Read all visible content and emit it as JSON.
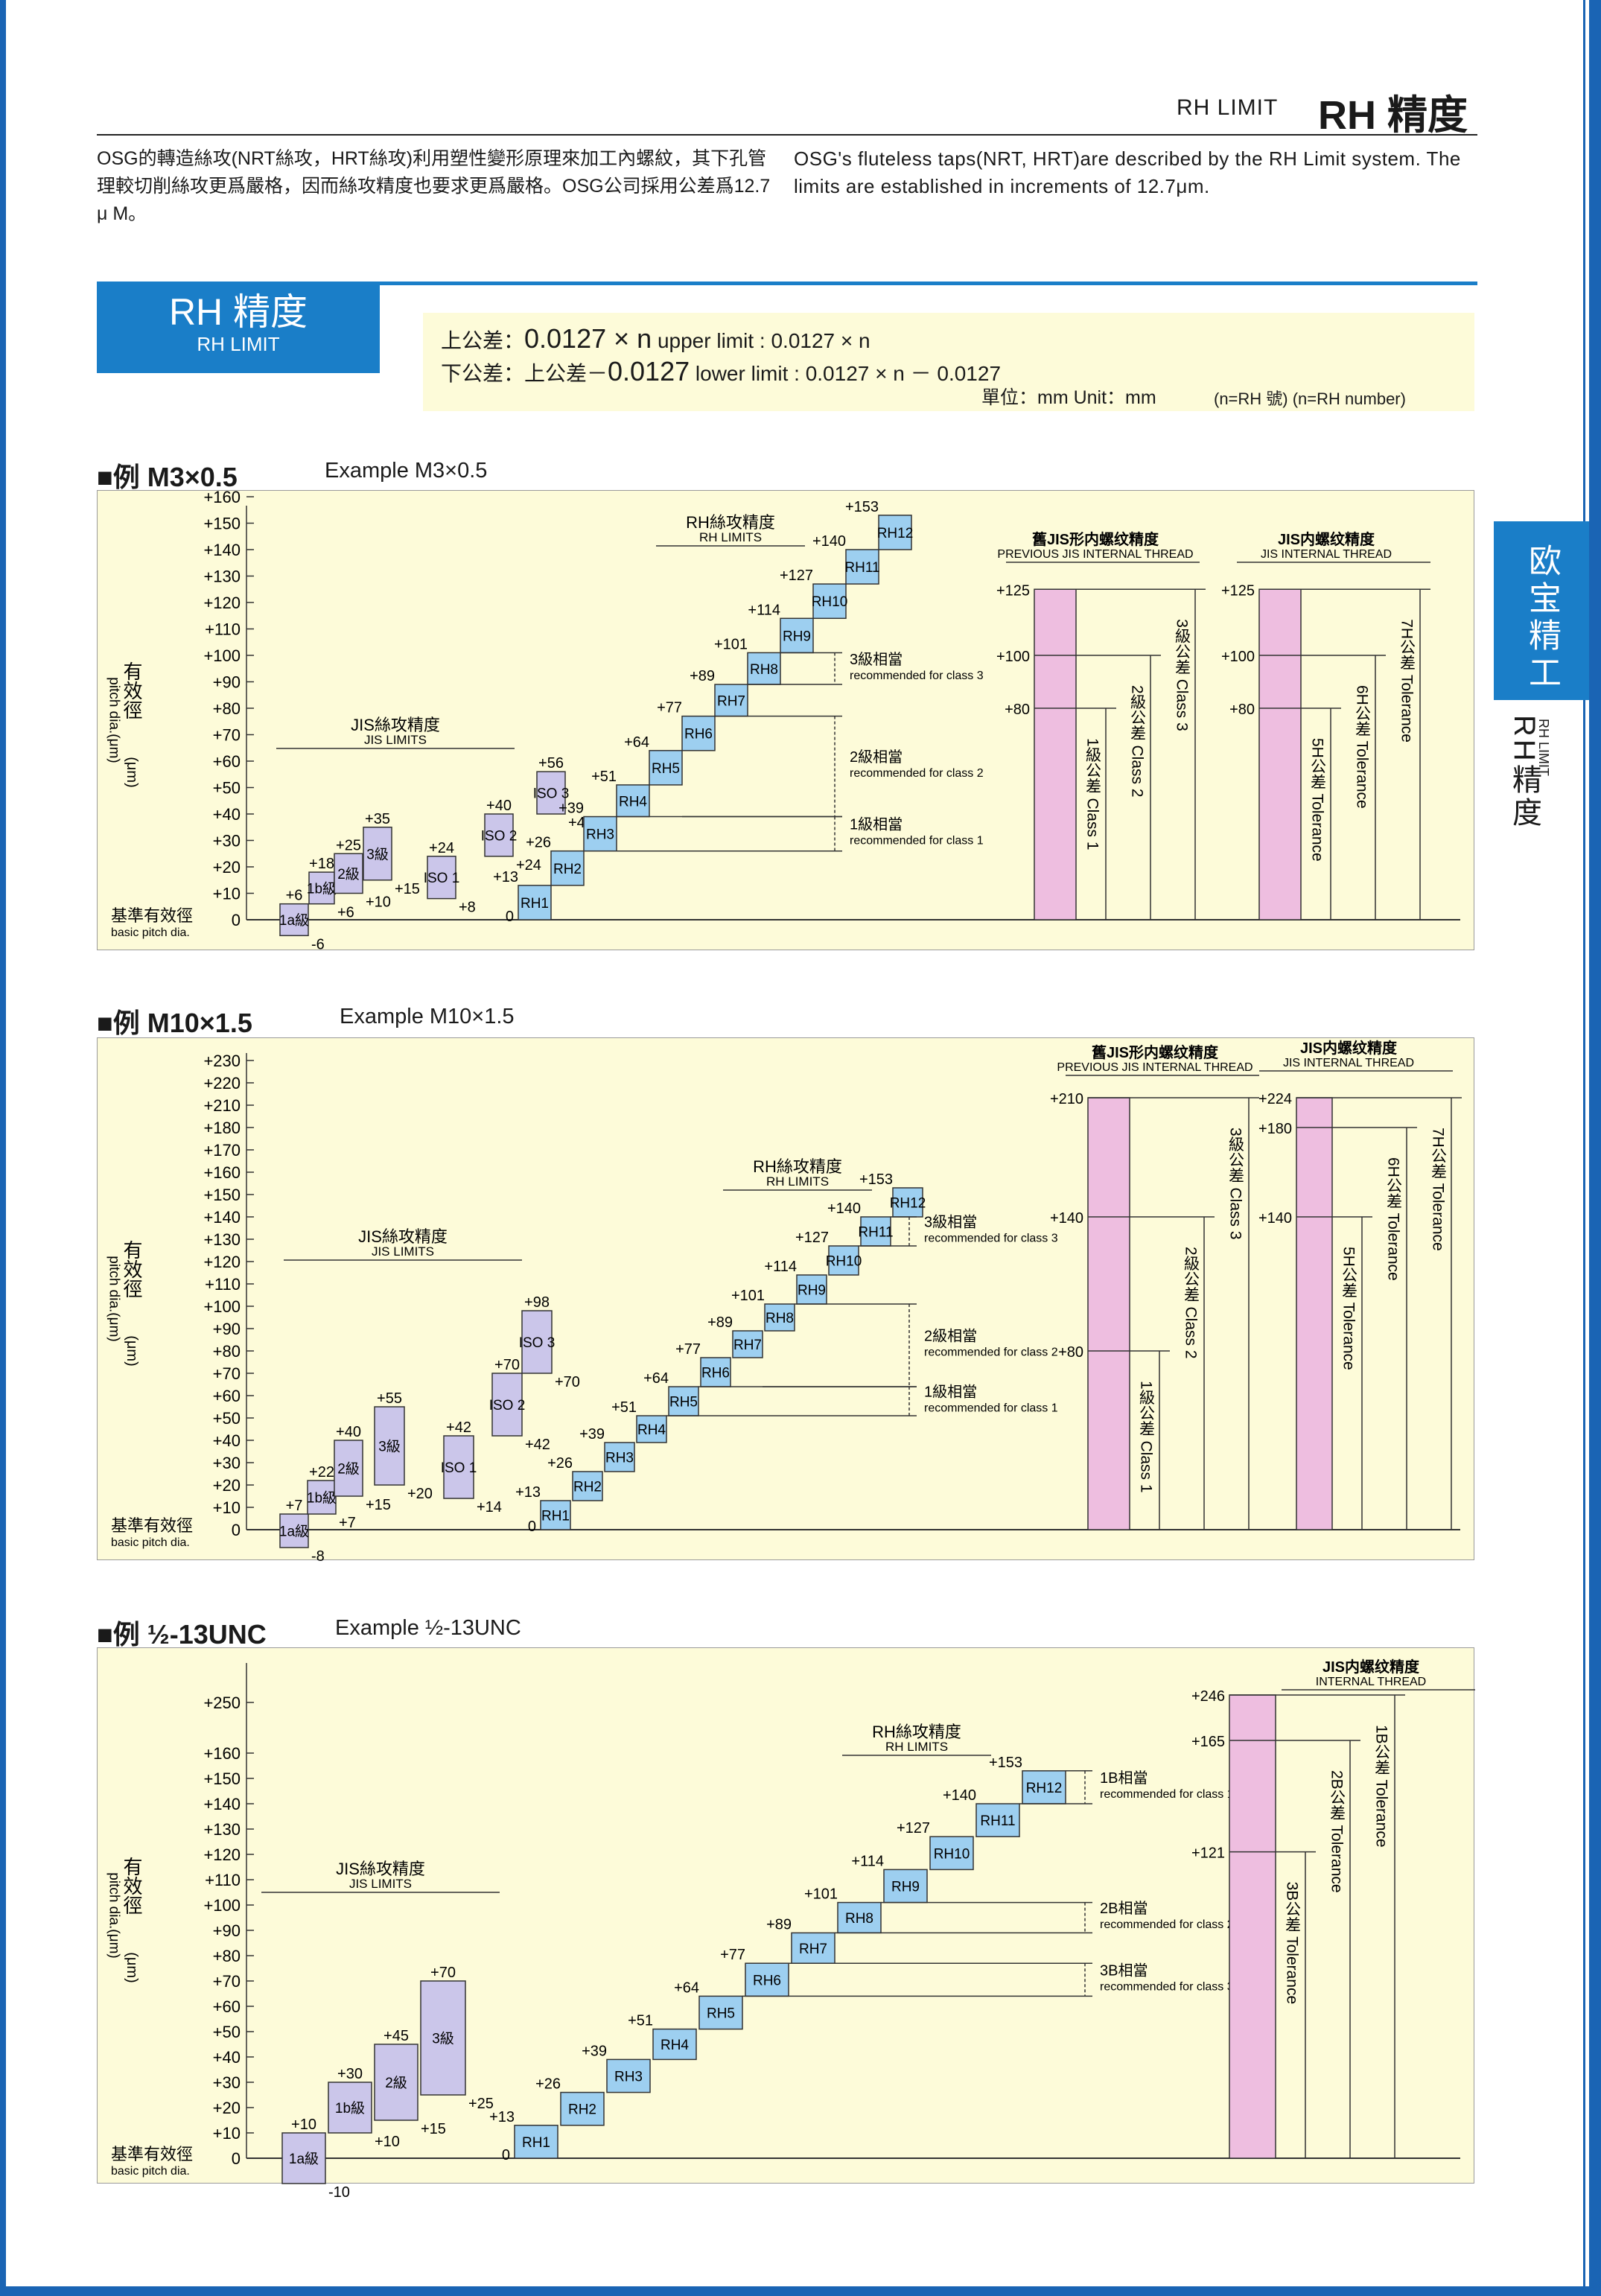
{
  "header": {
    "limit_label": "RH LIMIT",
    "title": "RH 精度"
  },
  "intro": {
    "chinese": "OSG的轉造絲攻(NRT絲攻，HRT絲攻)利用塑性變形原理來加工內螺紋，其下孔管理較切削絲攻更爲嚴格，因而絲攻精度也要求更爲嚴格。OSG公司採用公差爲12.7 μ M。",
    "english": "OSG's fluteless taps(NRT, HRT)are described by the RH Limit system. The limits are established in increments of 12.7μm."
  },
  "section": {
    "title": "RH 精度",
    "subtitle": "RH LIMIT"
  },
  "formula": {
    "upper_prefix": "上公差：",
    "upper_main": "0.0127 × n",
    "upper_en": "upper limit : 0.0127 × n",
    "lower_prefix": "下公差：上公差－",
    "lower_main": "0.0127",
    "lower_en": "lower limit :  0.0127 × n － 0.0127",
    "unit": "單位：mm   Unit：mm",
    "note": "(n=RH 號)  (n=RH number)"
  },
  "side_tab": {
    "text": "欧宝精工",
    "rh": "RH精度",
    "limit": "RH LIMIT"
  },
  "examples": [
    {
      "heading": "■例  M3×0.5",
      "sub": "Example M3×0.5"
    },
    {
      "heading": "■例  M10×1.5",
      "sub": "Example M10×1.5"
    },
    {
      "heading": "■例  ½-13UNC",
      "sub": "Example ½-13UNC"
    }
  ],
  "common": {
    "y_label_cn": "有效徑",
    "y_label_unit": "(μm)",
    "y_label_en": "pitch dia.(μm)",
    "base_cn": "基準有效徑",
    "base_en": "basic pitch dia.",
    "jis_limits_cn": "JIS絲攻精度",
    "jis_limits_en": "JIS LIMITS",
    "rh_limits_cn": "RH絲攻精度",
    "rh_limits_en": "RH LIMITS"
  },
  "chart_data": [
    {
      "type": "range-bar",
      "title": "M3×0.5",
      "ylabel": "pitch dia.(μm)",
      "y_ticks": [
        "+160",
        "+150",
        "+140",
        "+130",
        "+120",
        "+110",
        "+100",
        "+90",
        "+80",
        "+70",
        "+60",
        "+50",
        "+40",
        "+30",
        "+20",
        "+10",
        "0"
      ],
      "jis_bars": [
        {
          "name": "1a級",
          "lower": -6,
          "upper": 6
        },
        {
          "name": "1b級",
          "lower": 6,
          "upper": 18
        },
        {
          "name": "2級",
          "lower": 10,
          "upper": 25
        },
        {
          "name": "3級",
          "lower": 15,
          "upper": 35
        },
        {
          "name": "ISO 1",
          "lower": 8,
          "upper": 24
        },
        {
          "name": "ISO 2",
          "lower": 24,
          "upper": 40
        },
        {
          "name": "ISO 3",
          "lower": 40,
          "upper": 56
        }
      ],
      "rh_bars": [
        {
          "name": "RH1",
          "lower": 0,
          "upper": 13
        },
        {
          "name": "RH2",
          "lower": 13,
          "upper": 26
        },
        {
          "name": "RH3",
          "lower": 26,
          "upper": 39
        },
        {
          "name": "RH4",
          "lower": 39,
          "upper": 51
        },
        {
          "name": "RH5",
          "lower": 51,
          "upper": 64
        },
        {
          "name": "RH6",
          "lower": 64,
          "upper": 77
        },
        {
          "name": "RH7",
          "lower": 77,
          "upper": 89
        },
        {
          "name": "RH8",
          "lower": 89,
          "upper": 101
        },
        {
          "name": "RH9",
          "lower": 101,
          "upper": 114
        },
        {
          "name": "RH10",
          "lower": 114,
          "upper": 127
        },
        {
          "name": "RH11",
          "lower": 127,
          "upper": 140
        },
        {
          "name": "RH12",
          "lower": 140,
          "upper": 153
        }
      ],
      "recommended": [
        {
          "cn": "3級相當",
          "en": "recommended for class 3",
          "from": 89,
          "to": 101
        },
        {
          "cn": "2級相當",
          "en": "recommended for class 2",
          "from": 39,
          "to": 77
        },
        {
          "cn": "1級相當",
          "en": "recommended for class 1",
          "from": 26,
          "to": 39
        }
      ],
      "thread_panels": [
        {
          "cn": "舊JIS形内螺纹精度",
          "en": "PREVIOUS JIS INTERNAL THREAD",
          "top": 125,
          "marks": [
            "+125",
            "+100",
            "+80"
          ],
          "classes": [
            {
              "label": "1級公差 Class 1",
              "value": 80
            },
            {
              "label": "2級公差 Class 2",
              "value": 100
            },
            {
              "label": "3級公差 Class 3",
              "value": 125
            }
          ]
        },
        {
          "cn": "JIS内螺纹精度",
          "en": "JIS INTERNAL THREAD",
          "top": 125,
          "marks": [
            "+125",
            "+100",
            "+80"
          ],
          "classes": [
            {
              "label": "5H公差 Tolerance",
              "value": 80
            },
            {
              "label": "6H公差 Tolerance",
              "value": 100
            },
            {
              "label": "7H公差 Tolerance",
              "value": 125
            }
          ]
        }
      ]
    },
    {
      "type": "range-bar",
      "title": "M10×1.5",
      "ylabel": "pitch dia.(μm)",
      "y_ticks": [
        "+230",
        "+220",
        "+210",
        "+180",
        "+170",
        "+160",
        "+150",
        "+140",
        "+130",
        "+120",
        "+110",
        "+100",
        "+90",
        "+80",
        "+70",
        "+60",
        "+50",
        "+40",
        "+30",
        "+20",
        "+10",
        "0"
      ],
      "jis_bars": [
        {
          "name": "1a級",
          "lower": -8,
          "upper": 7
        },
        {
          "name": "1b級",
          "lower": 7,
          "upper": 22
        },
        {
          "name": "2級",
          "lower": 15,
          "upper": 40
        },
        {
          "name": "3級",
          "lower": 20,
          "upper": 55
        },
        {
          "name": "ISO 1",
          "lower": 14,
          "upper": 42
        },
        {
          "name": "ISO 2",
          "lower": 42,
          "upper": 70
        },
        {
          "name": "ISO 3",
          "lower": 70,
          "upper": 98
        }
      ],
      "rh_bars": [
        {
          "name": "RH1",
          "lower": 0,
          "upper": 13
        },
        {
          "name": "RH2",
          "lower": 13,
          "upper": 26
        },
        {
          "name": "RH3",
          "lower": 26,
          "upper": 39
        },
        {
          "name": "RH4",
          "lower": 39,
          "upper": 51
        },
        {
          "name": "RH5",
          "lower": 51,
          "upper": 64
        },
        {
          "name": "RH6",
          "lower": 64,
          "upper": 77
        },
        {
          "name": "RH7",
          "lower": 77,
          "upper": 89
        },
        {
          "name": "RH8",
          "lower": 89,
          "upper": 101
        },
        {
          "name": "RH9",
          "lower": 101,
          "upper": 114
        },
        {
          "name": "RH10",
          "lower": 114,
          "upper": 127
        },
        {
          "name": "RH11",
          "lower": 127,
          "upper": 140
        },
        {
          "name": "RH12",
          "lower": 140,
          "upper": 153
        }
      ],
      "recommended": [
        {
          "cn": "3級相當",
          "en": "recommended for class 3",
          "from": 127,
          "to": 140
        },
        {
          "cn": "2級相當",
          "en": "recommended for class 2",
          "from": 64,
          "to": 101
        },
        {
          "cn": "1級相當",
          "en": "recommended for class 1",
          "from": 51,
          "to": 64
        }
      ],
      "thread_panels": [
        {
          "cn": "舊JIS形内螺纹精度",
          "en": "PREVIOUS JIS INTERNAL THREAD",
          "marks": [
            "+210",
            "+140",
            "+80"
          ],
          "classes": [
            {
              "label": "1級公差 Class 1",
              "value": 80
            },
            {
              "label": "2級公差 Class 2",
              "value": 140
            },
            {
              "label": "3級公差 Class 3",
              "value": 210
            }
          ]
        },
        {
          "cn": "JIS内螺纹精度",
          "en": "JIS INTERNAL THREAD",
          "marks": [
            "+224",
            "+180",
            "+140"
          ],
          "classes": [
            {
              "label": "5H公差 Tolerance",
              "value": 140
            },
            {
              "label": "6H公差 Tolerance",
              "value": 180
            },
            {
              "label": "7H公差 Tolerance",
              "value": 224
            }
          ]
        }
      ]
    },
    {
      "type": "range-bar",
      "title": "½-13UNC",
      "ylabel": "pitch dia.(μm)",
      "y_ticks": [
        "+250",
        "+160",
        "+150",
        "+140",
        "+130",
        "+120",
        "+110",
        "+100",
        "+90",
        "+80",
        "+70",
        "+60",
        "+50",
        "+40",
        "+30",
        "+20",
        "+10",
        "0"
      ],
      "jis_bars": [
        {
          "name": "1a級",
          "lower": -10,
          "upper": 10
        },
        {
          "name": "1b級",
          "lower": 10,
          "upper": 30
        },
        {
          "name": "2級",
          "lower": 15,
          "upper": 45
        },
        {
          "name": "3級",
          "lower": 25,
          "upper": 70
        }
      ],
      "rh_bars": [
        {
          "name": "RH1",
          "lower": 0,
          "upper": 13
        },
        {
          "name": "RH2",
          "lower": 13,
          "upper": 26
        },
        {
          "name": "RH3",
          "lower": 26,
          "upper": 39
        },
        {
          "name": "RH4",
          "lower": 39,
          "upper": 51
        },
        {
          "name": "RH5",
          "lower": 51,
          "upper": 64
        },
        {
          "name": "RH6",
          "lower": 64,
          "upper": 77
        },
        {
          "name": "RH7",
          "lower": 77,
          "upper": 89
        },
        {
          "name": "RH8",
          "lower": 89,
          "upper": 101
        },
        {
          "name": "RH9",
          "lower": 101,
          "upper": 114
        },
        {
          "name": "RH10",
          "lower": 114,
          "upper": 127
        },
        {
          "name": "RH11",
          "lower": 127,
          "upper": 140
        },
        {
          "name": "RH12",
          "lower": 140,
          "upper": 153
        }
      ],
      "recommended": [
        {
          "cn": "1B相當",
          "en": "recommended for class 1B",
          "from": 140,
          "to": 153
        },
        {
          "cn": "2B相當",
          "en": "recommended for class 2B",
          "from": 89,
          "to": 101
        },
        {
          "cn": "3B相當",
          "en": "recommended for class 3B",
          "from": 64,
          "to": 77
        }
      ],
      "thread_panels": [
        {
          "cn": "JIS内螺纹精度",
          "en": "INTERNAL THREAD",
          "marks": [
            "+246",
            "+165",
            "+121"
          ],
          "classes": [
            {
              "label": "3B公差 Tolerance",
              "value": 121
            },
            {
              "label": "2B公差 Tolerance",
              "value": 165
            },
            {
              "label": "1B公差 Tolerance",
              "value": 246
            }
          ]
        }
      ]
    }
  ]
}
